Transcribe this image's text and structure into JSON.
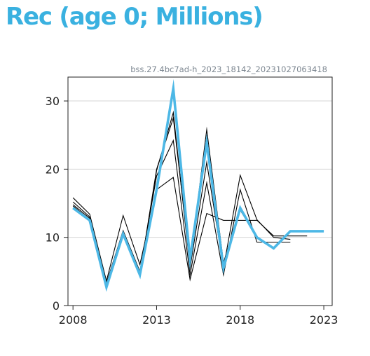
{
  "title": "Rec (age 0; Millions)",
  "source_label": "bss.27.4bc7ad-h_2023_18142_20231027063418",
  "chart_data": {
    "type": "line",
    "title": "Rec (age 0; Millions)",
    "xlabel": "",
    "ylabel": "",
    "xlim": [
      2007.7,
      2023.5
    ],
    "ylim": [
      0,
      33.5
    ],
    "x_ticks": [
      2008,
      2013,
      2018,
      2023
    ],
    "y_ticks": [
      0,
      10,
      20,
      30
    ],
    "grid": "horizontal",
    "legend": "none",
    "colors": {
      "main": "#4db8e6",
      "other": "#000000",
      "grid": "#d5d5d5",
      "axis": "#222222"
    },
    "series": [
      {
        "x": [
          2008,
          2009,
          2010,
          2011,
          2012,
          2013,
          2014,
          2015,
          2016,
          2017,
          2018,
          2019,
          2020,
          2021,
          2022
        ],
        "values": [
          15.8,
          13.4,
          3.6,
          13.2,
          6.0,
          17.0,
          18.8,
          3.8,
          13.5,
          12.5,
          12.5,
          12.5,
          10.2,
          10.2,
          10.2
        ],
        "main": false
      },
      {
        "x": [
          2008,
          2009,
          2010,
          2011,
          2012,
          2013,
          2014,
          2015,
          2016,
          2017,
          2018,
          2019,
          2020,
          2021
        ],
        "values": [
          15.2,
          13.0,
          3.3,
          11.0,
          5.0,
          19.0,
          24.2,
          4.5,
          18.0,
          4.5,
          17.0,
          9.3,
          9.3,
          9.3
        ],
        "main": false
      },
      {
        "x": [
          2008,
          2009,
          2010,
          2011,
          2012,
          2013,
          2014,
          2015,
          2016,
          2017,
          2018,
          2019,
          2020,
          2021
        ],
        "values": [
          14.8,
          12.8,
          3.0,
          10.6,
          4.5,
          19.8,
          28.3,
          5.5,
          21.0,
          5.5,
          19.1,
          12.6,
          10.0,
          9.7
        ],
        "main": false
      },
      {
        "x": [
          2008,
          2009,
          2010,
          2011,
          2012,
          2013,
          2014,
          2015,
          2016,
          2017,
          2018,
          2019,
          2020
        ],
        "values": [
          14.6,
          12.6,
          2.8,
          10.8,
          4.6,
          20.0,
          27.5,
          6.3,
          25.8,
          6.3,
          14.0,
          10.0,
          8.5
        ],
        "main": false
      },
      {
        "x": [
          2008,
          2009,
          2010,
          2011,
          2012,
          2013,
          2014,
          2015,
          2016,
          2017,
          2018,
          2019,
          2020,
          2021,
          2022,
          2023
        ],
        "values": [
          14.3,
          12.5,
          2.7,
          10.5,
          4.5,
          17.0,
          31.8,
          6.8,
          23.9,
          5.5,
          14.3,
          10.0,
          8.4,
          10.9,
          10.9,
          10.9
        ],
        "main": true
      }
    ]
  }
}
